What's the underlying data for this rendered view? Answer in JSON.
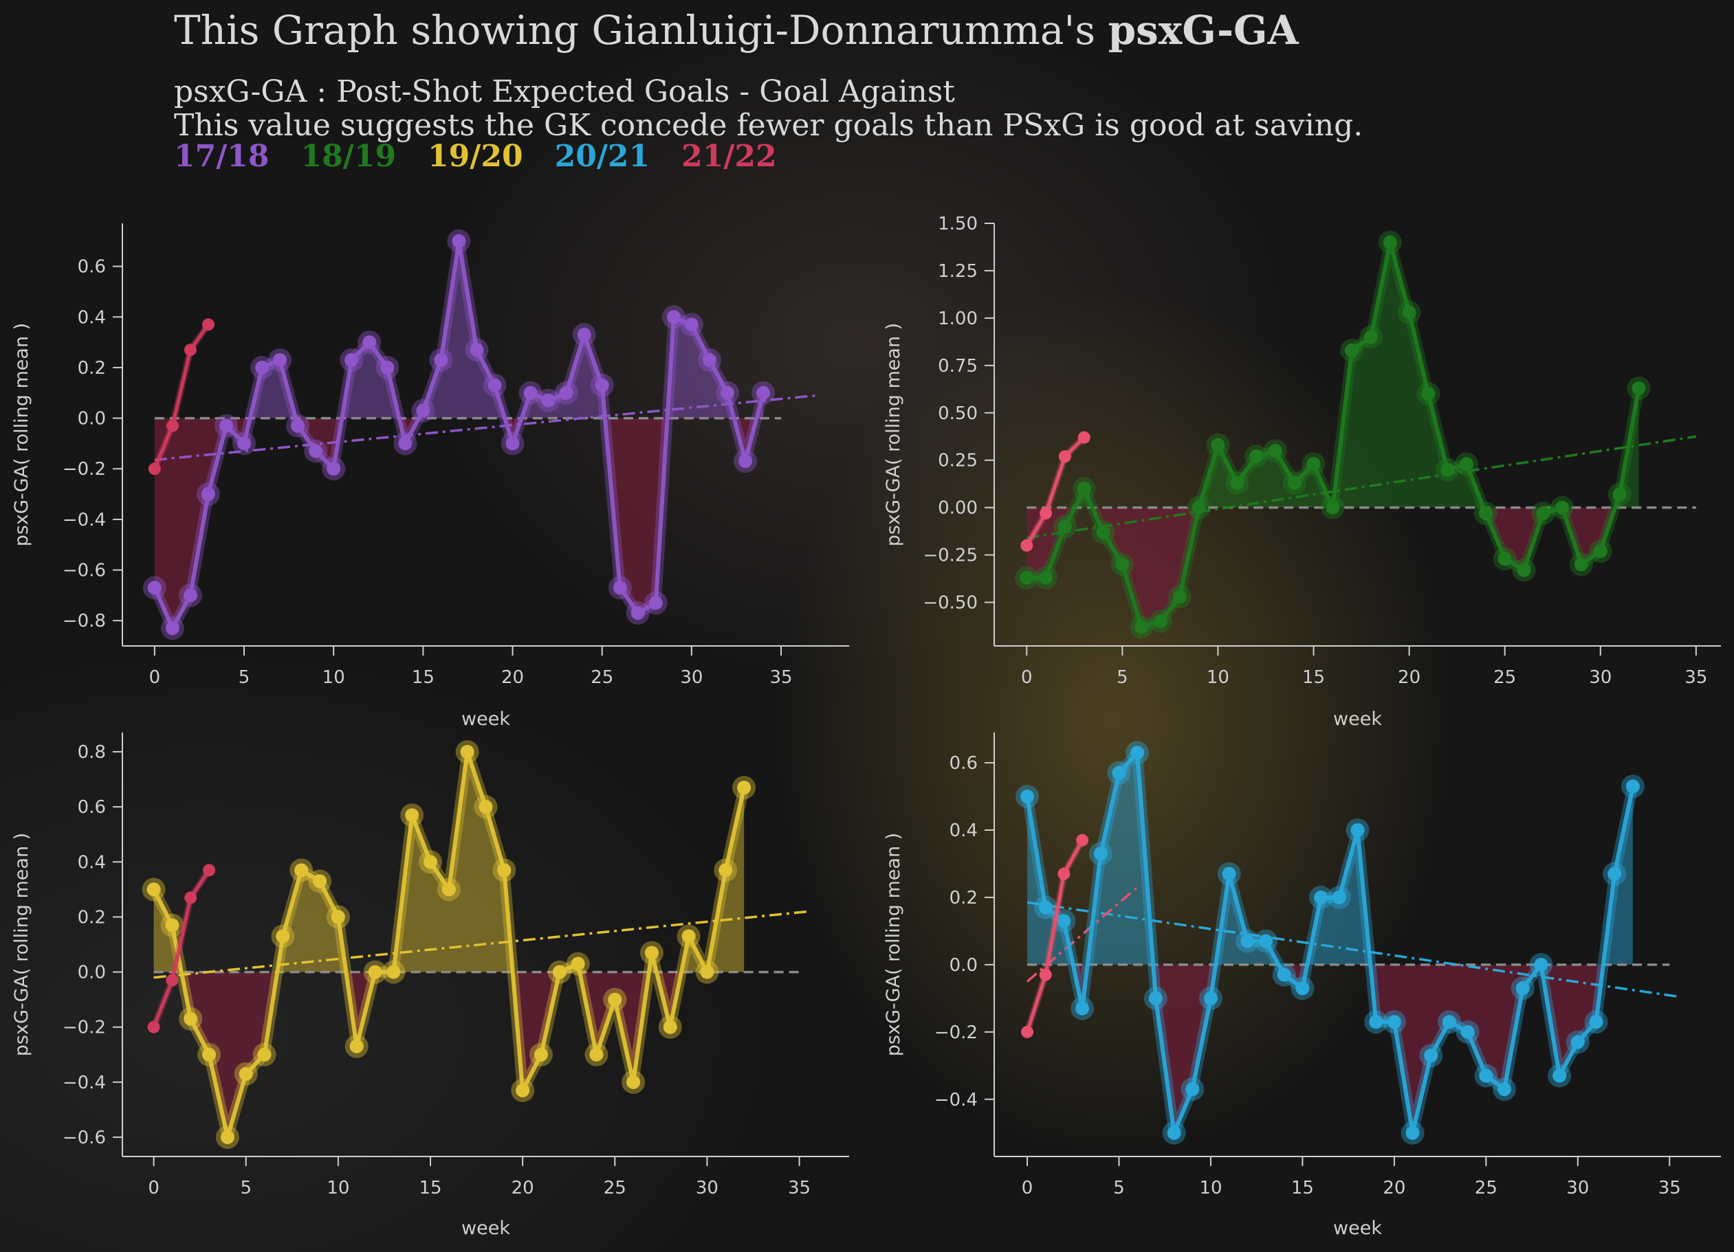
{
  "title": {
    "prefix": "This Graph showing Gianluigi-Donnarumma's",
    "metric": "psxG-GA"
  },
  "subtitle_line1": "psxG-GA : Post-Shot Expected Goals - Goal Against",
  "subtitle_line2": "This value suggests the GK concede fewer goals than PSxG is good at saving.",
  "season_legend": [
    {
      "label": "17/18",
      "color": "#8e56c8"
    },
    {
      "label": "18/19",
      "color": "#1f7a1f"
    },
    {
      "label": "19/20",
      "color": "#e0c234"
    },
    {
      "label": "20/21",
      "color": "#2aa7d9"
    },
    {
      "label": "21/22",
      "color": "#d03a5c"
    }
  ],
  "colors": {
    "negative_fill": "#6b1f36",
    "axis": "#d0d0d0",
    "zero_line": "#8a8a8a",
    "background": "#161616"
  },
  "chart_data": [
    {
      "type": "line",
      "season": "17/18",
      "xlabel": "week",
      "ylabel": "psxG-GA( rolling mean )",
      "xlim": [
        -1.8,
        38.8
      ],
      "ylim": [
        -0.9,
        0.77
      ],
      "xticks": [
        0,
        5,
        10,
        15,
        20,
        25,
        30,
        35
      ],
      "xtick_labels": [
        "0",
        "5",
        "10",
        "15",
        "20",
        "25",
        "30",
        "35"
      ],
      "yticks": [
        -0.8,
        -0.6,
        -0.4,
        -0.2,
        0.0,
        0.2,
        0.4,
        0.6
      ],
      "ytick_labels": [
        "−0.8",
        "−0.6",
        "−0.4",
        "−0.2",
        "0.0",
        "0.2",
        "0.4",
        "0.6"
      ],
      "zero_line_x": [
        0,
        35
      ],
      "series": [
        {
          "color": "#8e56c8",
          "x": [
            0,
            1,
            2,
            3,
            4,
            5,
            6,
            7,
            8,
            9,
            10,
            11,
            12,
            13,
            14,
            15,
            16,
            17,
            18,
            19,
            20,
            21,
            22,
            23,
            24,
            25,
            26,
            27,
            28,
            29,
            30,
            31,
            32,
            33,
            34
          ],
          "y": [
            -0.67,
            -0.83,
            -0.7,
            -0.3,
            -0.03,
            -0.1,
            0.2,
            0.23,
            -0.03,
            -0.13,
            -0.2,
            0.23,
            0.3,
            0.2,
            -0.1,
            0.03,
            0.23,
            0.7,
            0.27,
            0.13,
            -0.1,
            0.1,
            0.07,
            0.1,
            0.33,
            0.13,
            -0.67,
            -0.77,
            -0.73,
            0.4,
            0.37,
            0.23,
            0.1,
            -0.17,
            0.1
          ]
        },
        {
          "color": "#d03a5c",
          "x": [
            0,
            1,
            2,
            3
          ],
          "y": [
            -0.2,
            -0.03,
            0.27,
            0.37
          ]
        }
      ],
      "trendline": {
        "color": "#8e56c8",
        "x": [
          0,
          37
        ],
        "y": [
          -0.165,
          0.09
        ]
      }
    },
    {
      "type": "line",
      "season": "18/19",
      "xlabel": "week",
      "ylabel": "psxG-GA( rolling mean )",
      "xlim": [
        -1.7,
        36.3
      ],
      "ylim": [
        -0.73,
        1.5
      ],
      "xticks": [
        0,
        5,
        10,
        15,
        20,
        25,
        30,
        35
      ],
      "xtick_labels": [
        "0",
        "5",
        "10",
        "15",
        "20",
        "25",
        "30",
        "35"
      ],
      "yticks": [
        -0.5,
        -0.25,
        0.0,
        0.25,
        0.5,
        0.75,
        1.0,
        1.25,
        1.5
      ],
      "ytick_labels": [
        "−0.50",
        "−0.25",
        "0.00",
        "0.25",
        "0.50",
        "0.75",
        "1.00",
        "1.25",
        "1.50"
      ],
      "zero_line_x": [
        0,
        35
      ],
      "series": [
        {
          "color": "#1f7a1f",
          "x": [
            0,
            1,
            2,
            3,
            4,
            5,
            6,
            7,
            8,
            9,
            10,
            11,
            12,
            13,
            14,
            15,
            16,
            17,
            18,
            19,
            20,
            21,
            22,
            23,
            24,
            25,
            26,
            27,
            28,
            29,
            30,
            31,
            32
          ],
          "y": [
            -0.37,
            -0.37,
            -0.1,
            0.1,
            -0.13,
            -0.3,
            -0.63,
            -0.6,
            -0.47,
            0.0,
            0.33,
            0.13,
            0.27,
            0.3,
            0.13,
            0.23,
            0.0,
            0.83,
            0.9,
            1.4,
            1.03,
            0.6,
            0.2,
            0.23,
            -0.03,
            -0.27,
            -0.33,
            -0.03,
            0.0,
            -0.3,
            -0.23,
            0.07,
            0.63
          ]
        },
        {
          "color": "#e8506e",
          "x": [
            0,
            1,
            2,
            3
          ],
          "y": [
            -0.2,
            -0.03,
            0.27,
            0.37
          ]
        }
      ],
      "trendline": {
        "color": "#1f7a1f",
        "x": [
          0,
          35
        ],
        "y": [
          -0.16,
          0.375
        ]
      }
    },
    {
      "type": "line",
      "season": "19/20",
      "xlabel": "week",
      "ylabel": "psxG-GA( rolling mean )",
      "xlim": [
        -1.7,
        37.7
      ],
      "ylim": [
        -0.67,
        0.87
      ],
      "xticks": [
        0,
        5,
        10,
        15,
        20,
        25,
        30,
        35
      ],
      "xtick_labels": [
        "0",
        "5",
        "10",
        "15",
        "20",
        "25",
        "30",
        "35"
      ],
      "yticks": [
        -0.6,
        -0.4,
        -0.2,
        0.0,
        0.2,
        0.4,
        0.6,
        0.8
      ],
      "ytick_labels": [
        "−0.6",
        "−0.4",
        "−0.2",
        "0.0",
        "0.2",
        "0.4",
        "0.6",
        "0.8"
      ],
      "zero_line_x": [
        0,
        35
      ],
      "series": [
        {
          "color": "#e0c234",
          "x": [
            0,
            1,
            2,
            3,
            4,
            5,
            6,
            7,
            8,
            9,
            10,
            11,
            12,
            13,
            14,
            15,
            16,
            17,
            18,
            19,
            20,
            21,
            22,
            23,
            24,
            25,
            26,
            27,
            28,
            29,
            30,
            31,
            32
          ],
          "y": [
            0.3,
            0.17,
            -0.17,
            -0.3,
            -0.6,
            -0.37,
            -0.3,
            0.13,
            0.37,
            0.33,
            0.2,
            -0.27,
            0.0,
            0.0,
            0.57,
            0.4,
            0.3,
            0.8,
            0.6,
            0.37,
            -0.43,
            -0.3,
            0.0,
            0.03,
            -0.3,
            -0.1,
            -0.4,
            0.07,
            -0.2,
            0.13,
            0.0,
            0.37,
            0.67
          ]
        },
        {
          "color": "#d03a5c",
          "x": [
            0,
            1,
            2,
            3
          ],
          "y": [
            -0.2,
            -0.03,
            0.27,
            0.37
          ]
        }
      ],
      "trendline": {
        "color": "#e0c234",
        "x": [
          0,
          35.5
        ],
        "y": [
          -0.02,
          0.22
        ]
      }
    },
    {
      "type": "line",
      "season": "20/21",
      "xlabel": "week",
      "ylabel": "psxG-GA( rolling mean )",
      "xlim": [
        -1.8,
        37.8
      ],
      "ylim": [
        -0.57,
        0.69
      ],
      "xticks": [
        0,
        5,
        10,
        15,
        20,
        25,
        30,
        35
      ],
      "xtick_labels": [
        "0",
        "5",
        "10",
        "15",
        "20",
        "25",
        "30",
        "35"
      ],
      "yticks": [
        -0.4,
        -0.2,
        0.0,
        0.2,
        0.4,
        0.6
      ],
      "ytick_labels": [
        "−0.4",
        "−0.2",
        "0.0",
        "0.2",
        "0.4",
        "0.6"
      ],
      "zero_line_x": [
        0,
        35
      ],
      "series": [
        {
          "color": "#2aa7d9",
          "x": [
            0,
            1,
            2,
            3,
            4,
            5,
            6,
            7,
            8,
            9,
            10,
            11,
            12,
            13,
            14,
            15,
            16,
            17,
            18,
            19,
            20,
            21,
            22,
            23,
            24,
            25,
            26,
            27,
            28,
            29,
            30,
            31,
            32,
            33
          ],
          "y": [
            0.5,
            0.17,
            0.13,
            -0.13,
            0.33,
            0.57,
            0.63,
            -0.1,
            -0.5,
            -0.37,
            -0.1,
            0.27,
            0.07,
            0.07,
            -0.03,
            -0.07,
            0.2,
            0.2,
            0.4,
            -0.17,
            -0.17,
            -0.5,
            -0.27,
            -0.17,
            -0.2,
            -0.33,
            -0.37,
            -0.07,
            0.0,
            -0.33,
            -0.23,
            -0.17,
            0.27,
            0.53
          ]
        },
        {
          "color": "#e8506e",
          "x": [
            0,
            1,
            2,
            3
          ],
          "y": [
            -0.2,
            -0.03,
            0.27,
            0.37
          ]
        }
      ],
      "trendline": {
        "color": "#2aa7d9",
        "x": [
          0,
          35.5
        ],
        "y": [
          0.185,
          -0.095
        ]
      },
      "extra_trendline": {
        "color": "#e8506e",
        "x": [
          0,
          6
        ],
        "y": [
          -0.05,
          0.23
        ]
      }
    }
  ]
}
